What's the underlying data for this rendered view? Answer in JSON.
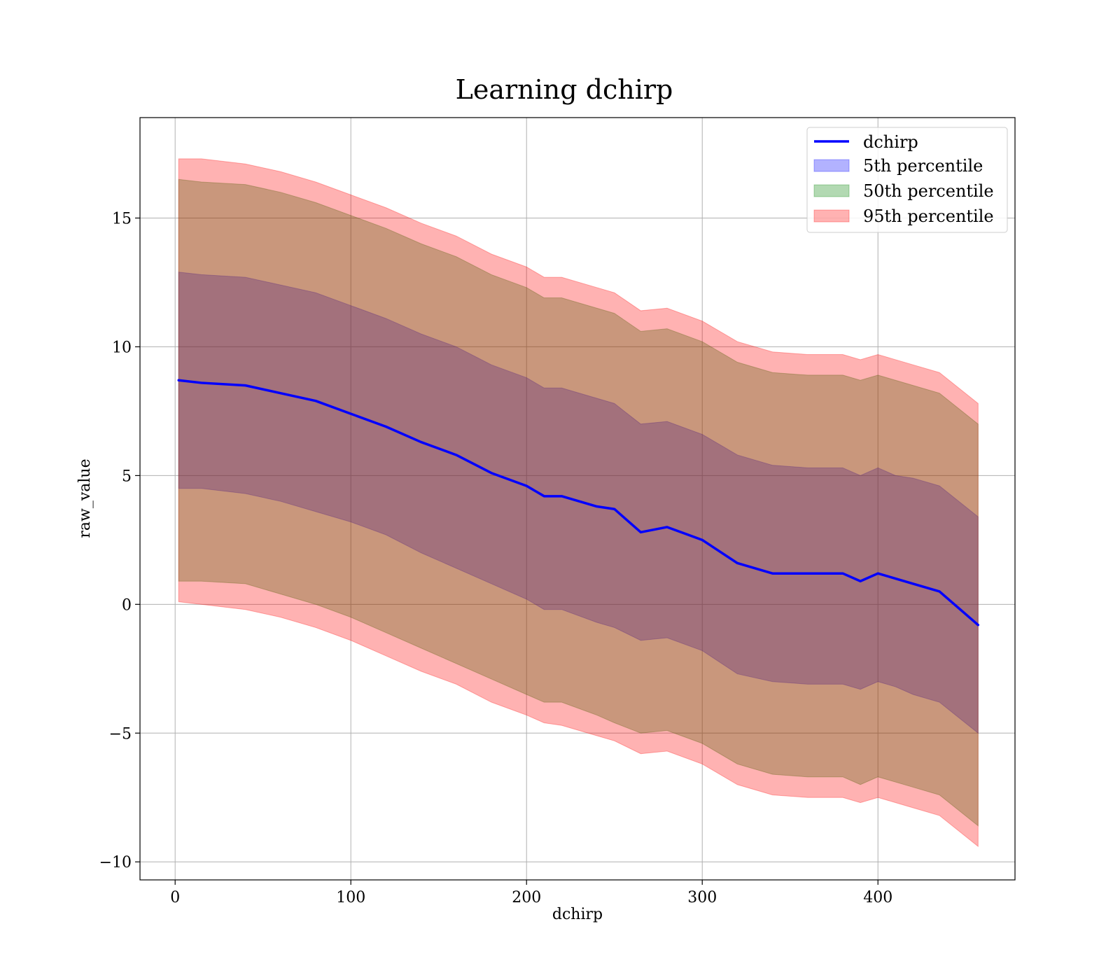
{
  "chart_data": {
    "type": "area",
    "title": "Learning dchirp",
    "xlabel": "dchirp",
    "ylabel": "raw_value",
    "xlim": [
      -20,
      478
    ],
    "ylim": [
      -10.7,
      18.9
    ],
    "xticks": [
      0,
      100,
      200,
      300,
      400
    ],
    "xtick_labels": [
      "0",
      "100",
      "200",
      "300",
      "400"
    ],
    "yticks": [
      -10,
      -5,
      0,
      5,
      10,
      15
    ],
    "ytick_labels": [
      "−10",
      "−5",
      "0",
      "5",
      "10",
      "15"
    ],
    "grid": true,
    "legend_position": "top-right",
    "x": [
      2,
      15,
      40,
      60,
      80,
      100,
      120,
      140,
      160,
      180,
      200,
      210,
      220,
      240,
      250,
      265,
      280,
      300,
      320,
      340,
      360,
      380,
      390,
      400,
      410,
      420,
      435,
      457
    ],
    "series": [
      {
        "name": "dchirp",
        "kind": "line",
        "color": "#0000ff",
        "values": [
          8.7,
          8.6,
          8.5,
          8.2,
          7.9,
          7.4,
          6.9,
          6.3,
          5.8,
          5.1,
          4.6,
          4.2,
          4.2,
          3.8,
          3.7,
          2.8,
          3.0,
          2.5,
          1.6,
          1.2,
          1.2,
          1.2,
          0.9,
          1.2,
          1.0,
          0.8,
          0.5,
          -0.8
        ]
      },
      {
        "name": "5th percentile",
        "kind": "band",
        "color": "#0000ff",
        "lower": [
          4.5,
          4.5,
          4.3,
          4.0,
          3.6,
          3.2,
          2.7,
          2.0,
          1.4,
          0.8,
          0.2,
          -0.2,
          -0.2,
          -0.7,
          -0.9,
          -1.4,
          -1.3,
          -1.8,
          -2.7,
          -3.0,
          -3.1,
          -3.1,
          -3.3,
          -3.0,
          -3.2,
          -3.5,
          -3.8,
          -5.0
        ],
        "upper": [
          12.9,
          12.8,
          12.7,
          12.4,
          12.1,
          11.6,
          11.1,
          10.5,
          10.0,
          9.3,
          8.8,
          8.4,
          8.4,
          8.0,
          7.8,
          7.0,
          7.1,
          6.6,
          5.8,
          5.4,
          5.3,
          5.3,
          5.0,
          5.3,
          5.0,
          4.9,
          4.6,
          3.4
        ]
      },
      {
        "name": "50th percentile",
        "kind": "band",
        "color": "#008000",
        "lower": [
          0.9,
          0.9,
          0.8,
          0.4,
          0.0,
          -0.5,
          -1.1,
          -1.7,
          -2.3,
          -2.9,
          -3.5,
          -3.8,
          -3.8,
          -4.3,
          -4.6,
          -5.0,
          -4.9,
          -5.4,
          -6.2,
          -6.6,
          -6.7,
          -6.7,
          -7.0,
          -6.7,
          -6.9,
          -7.1,
          -7.4,
          -8.6
        ],
        "upper": [
          16.5,
          16.4,
          16.3,
          16.0,
          15.6,
          15.1,
          14.6,
          14.0,
          13.5,
          12.8,
          12.3,
          11.9,
          11.9,
          11.5,
          11.3,
          10.6,
          10.7,
          10.2,
          9.4,
          9.0,
          8.9,
          8.9,
          8.7,
          8.9,
          8.7,
          8.5,
          8.2,
          7.0
        ]
      },
      {
        "name": "95th percentile",
        "kind": "band",
        "color": "#ff0000",
        "lower": [
          0.1,
          0.0,
          -0.2,
          -0.5,
          -0.9,
          -1.4,
          -2.0,
          -2.6,
          -3.1,
          -3.8,
          -4.3,
          -4.6,
          -4.7,
          -5.1,
          -5.3,
          -5.8,
          -5.7,
          -6.2,
          -7.0,
          -7.4,
          -7.5,
          -7.5,
          -7.7,
          -7.5,
          -7.7,
          -7.9,
          -8.2,
          -9.4
        ],
        "upper": [
          17.3,
          17.3,
          17.1,
          16.8,
          16.4,
          15.9,
          15.4,
          14.8,
          14.3,
          13.6,
          13.1,
          12.7,
          12.7,
          12.3,
          12.1,
          11.4,
          11.5,
          11.0,
          10.2,
          9.8,
          9.7,
          9.7,
          9.5,
          9.7,
          9.5,
          9.3,
          9.0,
          7.8
        ]
      }
    ]
  }
}
